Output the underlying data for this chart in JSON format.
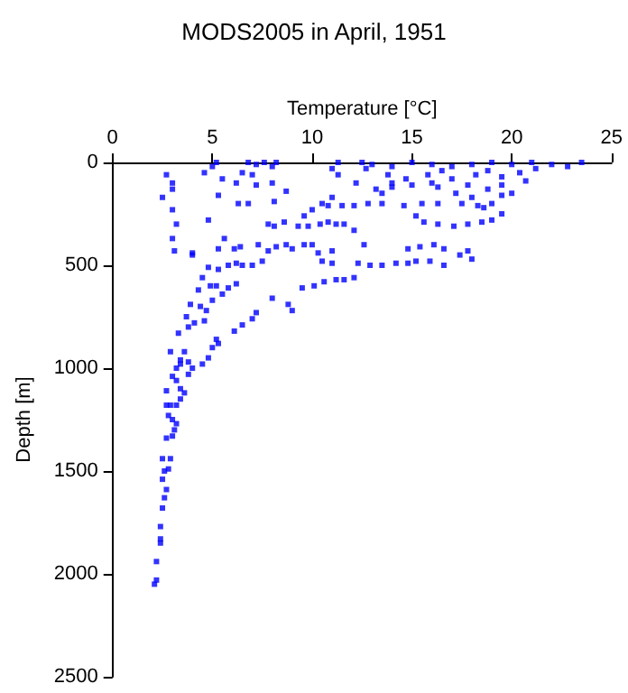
{
  "chart_data": {
    "type": "scatter",
    "title": "MODS2005 in April, 1951",
    "xlabel": "Temperature [°C]",
    "ylabel": "Depth [m]",
    "xlim": [
      0,
      25
    ],
    "xticks": [
      0,
      5,
      10,
      15,
      20,
      25
    ],
    "ylim": [
      2500,
      0
    ],
    "yticks": [
      0,
      500,
      1000,
      1500,
      2000,
      2500
    ],
    "grid": false,
    "marker": "square",
    "series": [
      {
        "color": "#0000ff",
        "x": [
          2.1,
          2.2,
          2.2,
          2.4,
          2.4,
          2.4,
          2.5,
          2.6,
          2.7,
          2.5,
          2.6,
          2.8,
          2.5,
          2.9,
          2.7,
          3.0,
          3.1,
          3.2,
          3.0,
          2.8,
          2.7,
          2.9,
          3.2,
          3.4,
          2.7,
          3.6,
          3.4,
          3.2,
          3.0,
          3.2,
          3.4,
          3.8,
          4.0,
          2.9,
          3.6,
          3.4,
          3.8,
          4.5,
          4.8,
          5.0,
          5.3,
          3.3,
          3.8,
          4.1,
          4.6,
          3.7,
          3.9,
          4.4,
          4.7,
          5.2,
          6.1,
          6.5,
          7.0,
          7.2,
          8.0,
          8.8,
          9.0,
          4.3,
          4.9,
          5.2,
          5.8,
          6.2,
          5.5,
          5.0,
          4.5,
          4.8,
          5.3,
          5.8,
          6.2,
          6.5,
          7.0,
          7.5,
          6.1,
          6.4,
          7.3,
          7.8,
          8.2,
          8.7,
          9.0,
          9.6,
          10,
          5.3,
          5.6,
          4.0,
          4.8,
          7.8,
          8.1,
          8.6,
          9.3,
          9.8,
          10.4,
          10.8,
          11.2,
          9.6,
          10.0,
          10.5,
          11,
          10.8,
          11.5,
          12.1,
          12.8,
          13.5,
          14.6,
          15.5,
          16.3,
          17.5,
          18.3,
          19,
          9.5,
          10.1,
          10.6,
          11.2,
          11.6,
          12.1,
          10.5,
          11,
          10.3,
          11.0,
          12.3,
          12.9,
          13.5,
          14.2,
          14.8,
          15.2,
          15.9,
          16.6,
          14.8,
          15.4,
          16.1,
          16.6,
          17.4,
          18.0,
          17.8,
          12.6,
          12.1,
          11.6,
          15.2,
          15.6,
          16.3,
          17.1,
          17.8,
          18.5,
          19.0,
          19.5,
          18.6,
          18.0,
          18.8,
          19.5,
          20.0,
          17.2,
          16.3,
          15.0,
          14.0,
          13.5,
          13.2,
          11.3,
          11,
          11.3,
          12.5,
          13,
          14,
          15,
          16,
          17,
          18,
          19,
          20,
          21,
          22,
          23.5,
          22.8,
          21.2,
          20.4,
          19.5,
          18.2,
          17,
          15.8,
          14.7,
          13.8,
          12.7,
          16.5,
          18.8,
          20.7,
          19.5,
          17.8,
          16,
          14,
          12.2,
          5,
          5.2,
          4.6,
          5.5,
          6.5,
          6.8,
          7.2,
          7.6,
          8,
          8.2,
          7.0,
          6.2,
          7.2,
          8.0,
          5.3,
          6.3,
          6.8,
          8.7,
          8.1,
          2.7,
          3,
          3,
          2.5,
          3,
          3.2,
          3,
          3.1,
          4
        ],
        "values": [
          2050,
          2030,
          1940,
          1850,
          1830,
          1770,
          1680,
          1630,
          1590,
          1540,
          1500,
          1490,
          1440,
          1440,
          1340,
          1330,
          1300,
          1270,
          1250,
          1230,
          1180,
          1180,
          1180,
          1150,
          1110,
          1120,
          1100,
          1060,
          1040,
          1000,
          980,
          1030,
          1000,
          920,
          920,
          960,
          970,
          980,
          950,
          900,
          880,
          830,
          800,
          780,
          770,
          750,
          690,
          700,
          720,
          860,
          820,
          790,
          760,
          730,
          660,
          690,
          720,
          620,
          600,
          600,
          610,
          590,
          640,
          670,
          560,
          510,
          520,
          500,
          490,
          500,
          500,
          480,
          420,
          410,
          400,
          430,
          410,
          400,
          420,
          400,
          400,
          420,
          370,
          450,
          280,
          300,
          310,
          290,
          310,
          310,
          300,
          290,
          300,
          260,
          230,
          200,
          170,
          210,
          210,
          210,
          200,
          200,
          210,
          200,
          200,
          200,
          210,
          200,
          610,
          600,
          580,
          570,
          570,
          560,
          480,
          490,
          440,
          430,
          490,
          500,
          500,
          490,
          490,
          480,
          480,
          500,
          420,
          410,
          400,
          420,
          450,
          470,
          430,
          400,
          330,
          300,
          260,
          290,
          300,
          310,
          300,
          290,
          280,
          250,
          220,
          170,
          130,
          160,
          150,
          150,
          120,
          110,
          120,
          150,
          130,
          60,
          30,
          0,
          0,
          10,
          20,
          0,
          10,
          20,
          10,
          0,
          10,
          0,
          10,
          0,
          20,
          30,
          50,
          70,
          60,
          80,
          60,
          80,
          60,
          30,
          40,
          40,
          90,
          110,
          110,
          100,
          100,
          100,
          20,
          0,
          50,
          80,
          50,
          0,
          10,
          0,
          20,
          0,
          60,
          100,
          110,
          100,
          160,
          200,
          200,
          140,
          190,
          60,
          100,
          130,
          170,
          230,
          300,
          370,
          430,
          440
        ]
      }
    ]
  }
}
